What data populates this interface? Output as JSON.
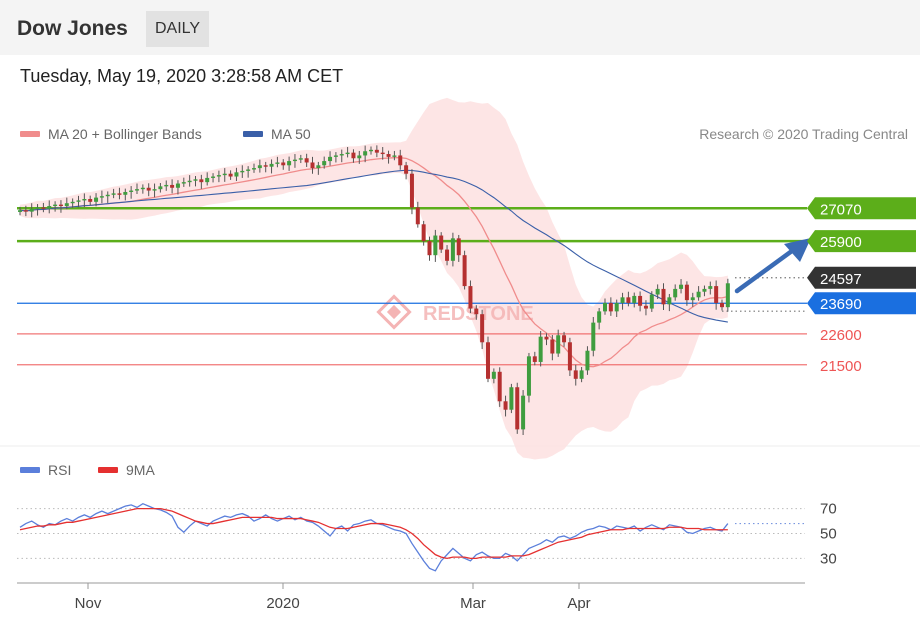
{
  "header": {
    "title": "Dow Jones",
    "period": "DAILY"
  },
  "timestamp": "Tuesday, May 19, 2020 3:28:58 AM CET",
  "legend": {
    "ma20": "MA 20 + Bollinger Bands",
    "ma50": "MA 50",
    "credit": "Research © 2020 Trading Central"
  },
  "rsi_legend": {
    "rsi": "RSI",
    "ma9": "9MA"
  },
  "watermark": "REDSTONE",
  "colors": {
    "ma20": "#f08c8c",
    "ma50": "#3a5fa8",
    "bollinger": "#fde0e0",
    "resistance": "#5cae1a",
    "pivot": "#1a6fe0",
    "support": "#ee5555",
    "current": "#333333",
    "arrow": "#3a6bb5",
    "rsi": "#5b7fdb",
    "rsi_ma": "#e53030"
  },
  "chart_data": [
    {
      "type": "candlestick",
      "title": "Dow Jones",
      "ylim": [
        19000,
        29500
      ],
      "levels": [
        {
          "value": 27070,
          "label": "27070",
          "kind": "resistance"
        },
        {
          "value": 25900,
          "label": "25900",
          "kind": "resistance"
        },
        {
          "value": 24597,
          "label": "24597",
          "kind": "current"
        },
        {
          "value": 23690,
          "label": "23690",
          "kind": "pivot"
        },
        {
          "value": 22600,
          "label": "22600",
          "kind": "support"
        },
        {
          "value": 21500,
          "label": "21500",
          "kind": "support"
        }
      ],
      "x_ticks": [
        "Nov",
        "2020",
        "Mar",
        "Apr"
      ],
      "close": [
        27000,
        26950,
        27050,
        27100,
        27050,
        27150,
        27200,
        27150,
        27250,
        27300,
        27350,
        27400,
        27300,
        27450,
        27500,
        27550,
        27600,
        27550,
        27650,
        27700,
        27750,
        27800,
        27700,
        27750,
        27850,
        27900,
        27800,
        27950,
        28000,
        28050,
        28100,
        28000,
        28150,
        28200,
        28250,
        28300,
        28200,
        28350,
        28400,
        28450,
        28500,
        28600,
        28550,
        28650,
        28700,
        28600,
        28750,
        28800,
        28850,
        28700,
        28500,
        28600,
        28750,
        28900,
        28950,
        29000,
        29050,
        28850,
        28950,
        29100,
        29150,
        29050,
        29000,
        28900,
        28950,
        28600,
        28300,
        27100,
        26500,
        25900,
        25400,
        26100,
        25600,
        25200,
        26000,
        25400,
        24300,
        23500,
        23300,
        22300,
        21000,
        21250,
        20200,
        19900,
        20700,
        19200,
        20400,
        21800,
        21600,
        22500,
        22400,
        21900,
        22550,
        22300,
        21300,
        21000,
        21300,
        22000,
        23000,
        23400,
        23700,
        23400,
        23700,
        23900,
        23700,
        23950,
        23600,
        23500,
        24000,
        24200,
        23650,
        23900,
        24200,
        24350,
        23800,
        23900,
        24100,
        24200,
        24300,
        23700,
        23550,
        24400
      ]
    },
    {
      "type": "line",
      "title": "RSI",
      "ylim": [
        15,
        85
      ],
      "y_ticks": [
        70,
        50,
        30
      ],
      "series": [
        {
          "name": "RSI",
          "values": [
            55,
            58,
            60,
            57,
            55,
            58,
            57,
            60,
            62,
            60,
            63,
            65,
            63,
            66,
            68,
            66,
            68,
            70,
            72,
            73,
            71,
            74,
            72,
            70,
            69,
            67,
            64,
            55,
            51,
            56,
            60,
            58,
            56,
            60,
            62,
            64,
            63,
            65,
            66,
            64,
            60,
            62,
            65,
            62,
            60,
            62,
            64,
            61,
            63,
            60,
            59,
            56,
            52,
            48,
            54,
            56,
            52,
            57,
            58,
            60,
            61,
            58,
            57,
            55,
            53,
            52,
            50,
            42,
            35,
            28,
            22,
            20,
            28,
            33,
            38,
            34,
            30,
            28,
            33,
            35,
            32,
            30,
            30,
            34,
            32,
            28,
            33,
            38,
            40,
            42,
            45,
            43,
            47,
            48,
            46,
            48,
            51,
            53,
            54,
            56,
            55,
            53,
            56,
            55,
            54,
            56,
            52,
            55,
            57,
            55,
            53,
            57,
            56,
            55,
            51,
            50,
            52,
            54,
            55,
            53,
            52,
            58
          ]
        },
        {
          "name": "9MA",
          "values": [
            53,
            54,
            55,
            56,
            56,
            57,
            57,
            58,
            59,
            59,
            60,
            61,
            62,
            63,
            64,
            65,
            66,
            67,
            68,
            69,
            70,
            70,
            70,
            70,
            70,
            69,
            68,
            66,
            64,
            62,
            60,
            59,
            58,
            58,
            59,
            60,
            61,
            62,
            63,
            63,
            63,
            63,
            63,
            63,
            62,
            62,
            62,
            62,
            62,
            61,
            60,
            59,
            57,
            55,
            54,
            54,
            54,
            55,
            56,
            57,
            58,
            58,
            58,
            57,
            56,
            55,
            53,
            50,
            46,
            41,
            37,
            33,
            31,
            30,
            31,
            31,
            31,
            30,
            30,
            31,
            31,
            31,
            31,
            31,
            32,
            32,
            32,
            33,
            35,
            37,
            39,
            41,
            43,
            44,
            45,
            46,
            47,
            49,
            50,
            51,
            52,
            53,
            53,
            53,
            54,
            54,
            54,
            54,
            54,
            54,
            54,
            55,
            55,
            55,
            54,
            54,
            54,
            53,
            53,
            53,
            53,
            53
          ]
        }
      ],
      "x_ticks": [
        "Nov",
        "2020",
        "Mar",
        "Apr"
      ]
    }
  ]
}
